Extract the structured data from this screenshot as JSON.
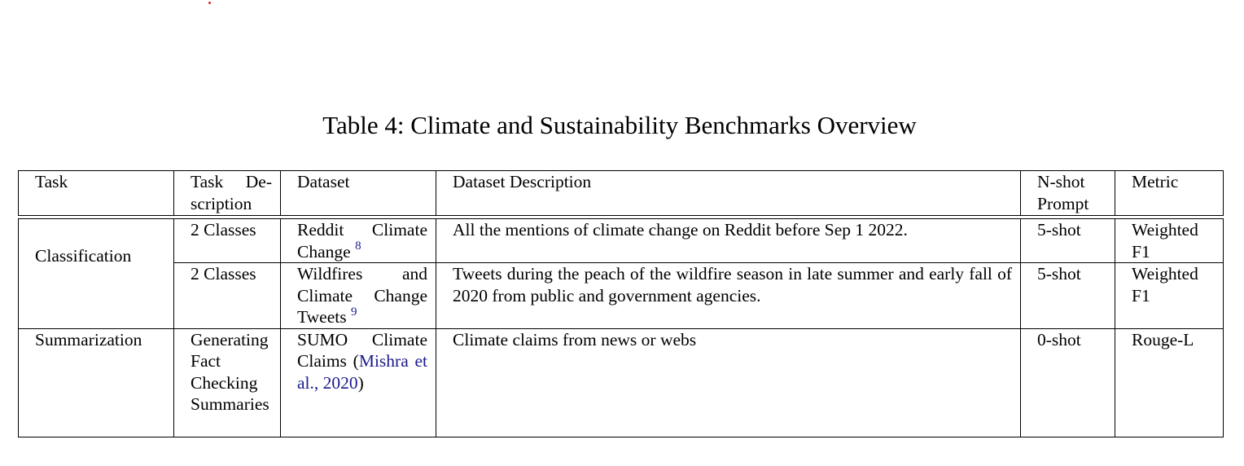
{
  "caption": "Table 4: Climate and Sustainability Benchmarks Overview",
  "headers": {
    "task": "Task",
    "task_desc": "Task Description",
    "dataset": "Dataset",
    "dataset_desc": "Dataset Description",
    "nshot": "N-shot Prompt",
    "metric": "Metric"
  },
  "rows": [
    {
      "task": "Classification",
      "task_desc": "2 Classes",
      "dataset": "Reddit Climate Change",
      "dataset_footnote": "8",
      "dataset_desc": "All the mentions of climate change on Reddit before Sep 1 2022.",
      "nshot": "5-shot",
      "metric": "Weighted F1"
    },
    {
      "task_desc": "2 Classes",
      "dataset": "Wildfires and Climate Change Tweets",
      "dataset_footnote": "9",
      "dataset_desc": "Tweets during the peach of the wildfire season in late summer and early fall of 2020 from public and government agencies.",
      "nshot": "5-shot",
      "metric": "Weighted F1"
    },
    {
      "task": "Summarization",
      "task_desc": "Generating Fact Checking Summaries",
      "dataset": "SUMO Climate Claims",
      "dataset_cite": "Mishra et al., 2020",
      "dataset_desc": "Climate claims from news or webs",
      "nshot": "0-shot",
      "metric": "Rouge-L"
    }
  ],
  "colors": {
    "citation_link": "#1a1a8c",
    "marker_dot": "#e0202a"
  }
}
